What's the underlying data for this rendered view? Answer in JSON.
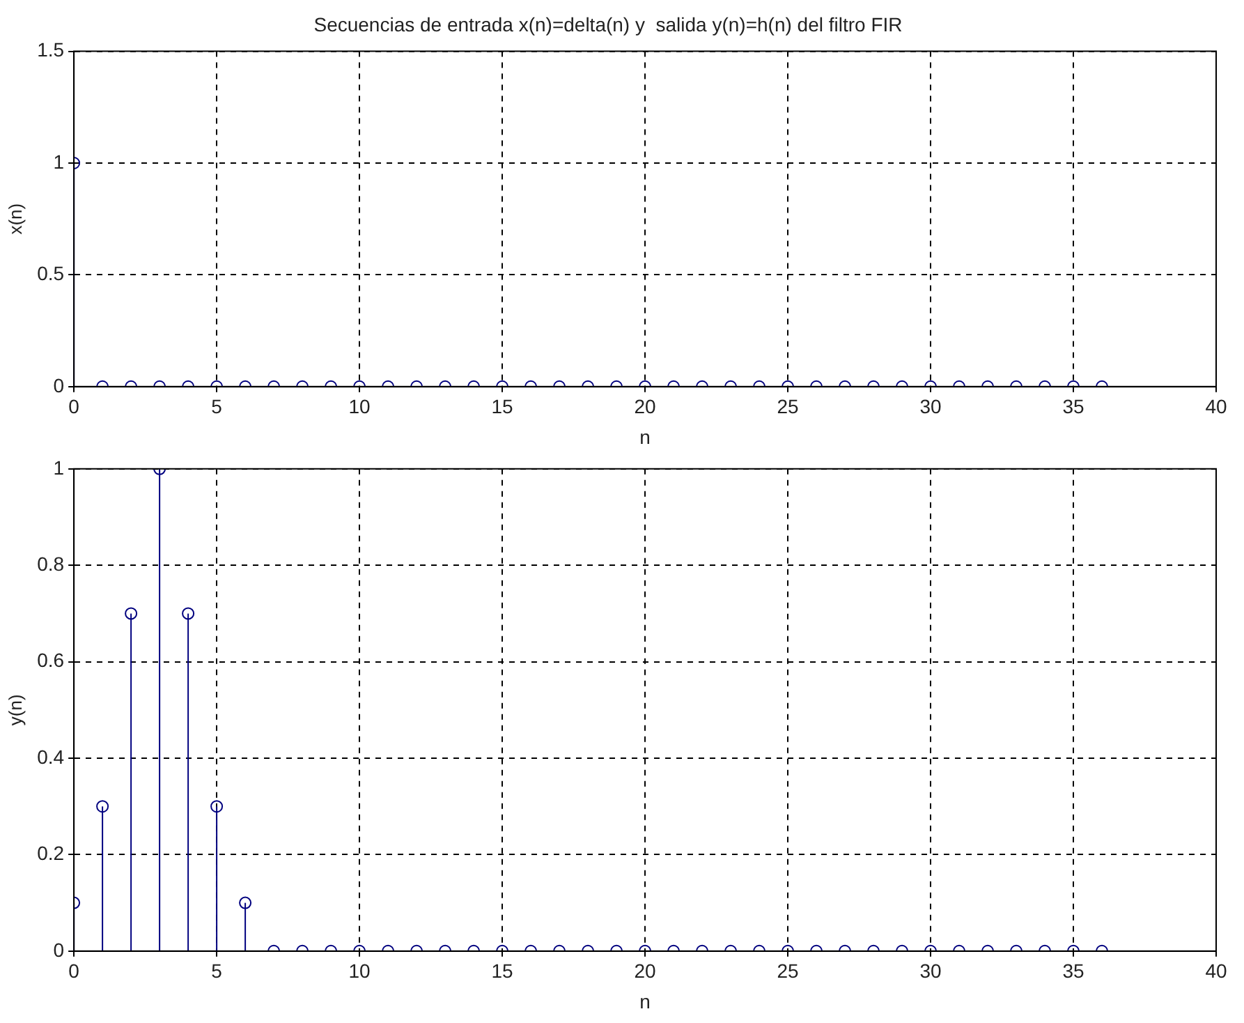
{
  "chart_data": [
    {
      "type": "lollipop",
      "title": "Secuencias de entrada x(n)=delta(n) y  salida y(n)=h(n) del filtro FIR",
      "xlabel": "n",
      "ylabel": "x(n)",
      "x": [
        0,
        1,
        2,
        3,
        4,
        5,
        6,
        7,
        8,
        9,
        10,
        11,
        12,
        13,
        14,
        15,
        16,
        17,
        18,
        19,
        20,
        21,
        22,
        23,
        24,
        25,
        26,
        27,
        28,
        29,
        30,
        31,
        32,
        33,
        34,
        35,
        36
      ],
      "series": [
        {
          "color": "#00007f",
          "values": [
            1,
            0,
            0,
            0,
            0,
            0,
            0,
            0,
            0,
            0,
            0,
            0,
            0,
            0,
            0,
            0,
            0,
            0,
            0,
            0,
            0,
            0,
            0,
            0,
            0,
            0,
            0,
            0,
            0,
            0,
            0,
            0,
            0,
            0,
            0,
            0,
            0
          ]
        }
      ],
      "xlim": [
        0,
        40
      ],
      "xticks": [
        0,
        5,
        10,
        15,
        20,
        25,
        30,
        35,
        40
      ],
      "ylim": [
        0,
        1.5
      ],
      "yticks": [
        0,
        0.5,
        1,
        1.5
      ],
      "grid": true,
      "marker": "circle",
      "legend": false
    },
    {
      "type": "lollipop",
      "xlabel": "n",
      "ylabel": "y(n)",
      "x": [
        0,
        1,
        2,
        3,
        4,
        5,
        6,
        7,
        8,
        9,
        10,
        11,
        12,
        13,
        14,
        15,
        16,
        17,
        18,
        19,
        20,
        21,
        22,
        23,
        24,
        25,
        26,
        27,
        28,
        29,
        30,
        31,
        32,
        33,
        34,
        35,
        36
      ],
      "series": [
        {
          "color": "#00007f",
          "values": [
            0.1,
            0.3,
            0.7,
            1,
            0.7,
            0.3,
            0.1,
            0,
            0,
            0,
            0,
            0,
            0,
            0,
            0,
            0,
            0,
            0,
            0,
            0,
            0,
            0,
            0,
            0,
            0,
            0,
            0,
            0,
            0,
            0,
            0,
            0,
            0,
            0,
            0,
            0,
            0
          ]
        }
      ],
      "xlim": [
        0,
        40
      ],
      "xticks": [
        0,
        5,
        10,
        15,
        20,
        25,
        30,
        35,
        40
      ],
      "ylim": [
        0,
        1
      ],
      "yticks": [
        0,
        0.2,
        0.4,
        0.6,
        0.8,
        1
      ],
      "grid": true,
      "marker": "circle",
      "legend": false
    }
  ]
}
